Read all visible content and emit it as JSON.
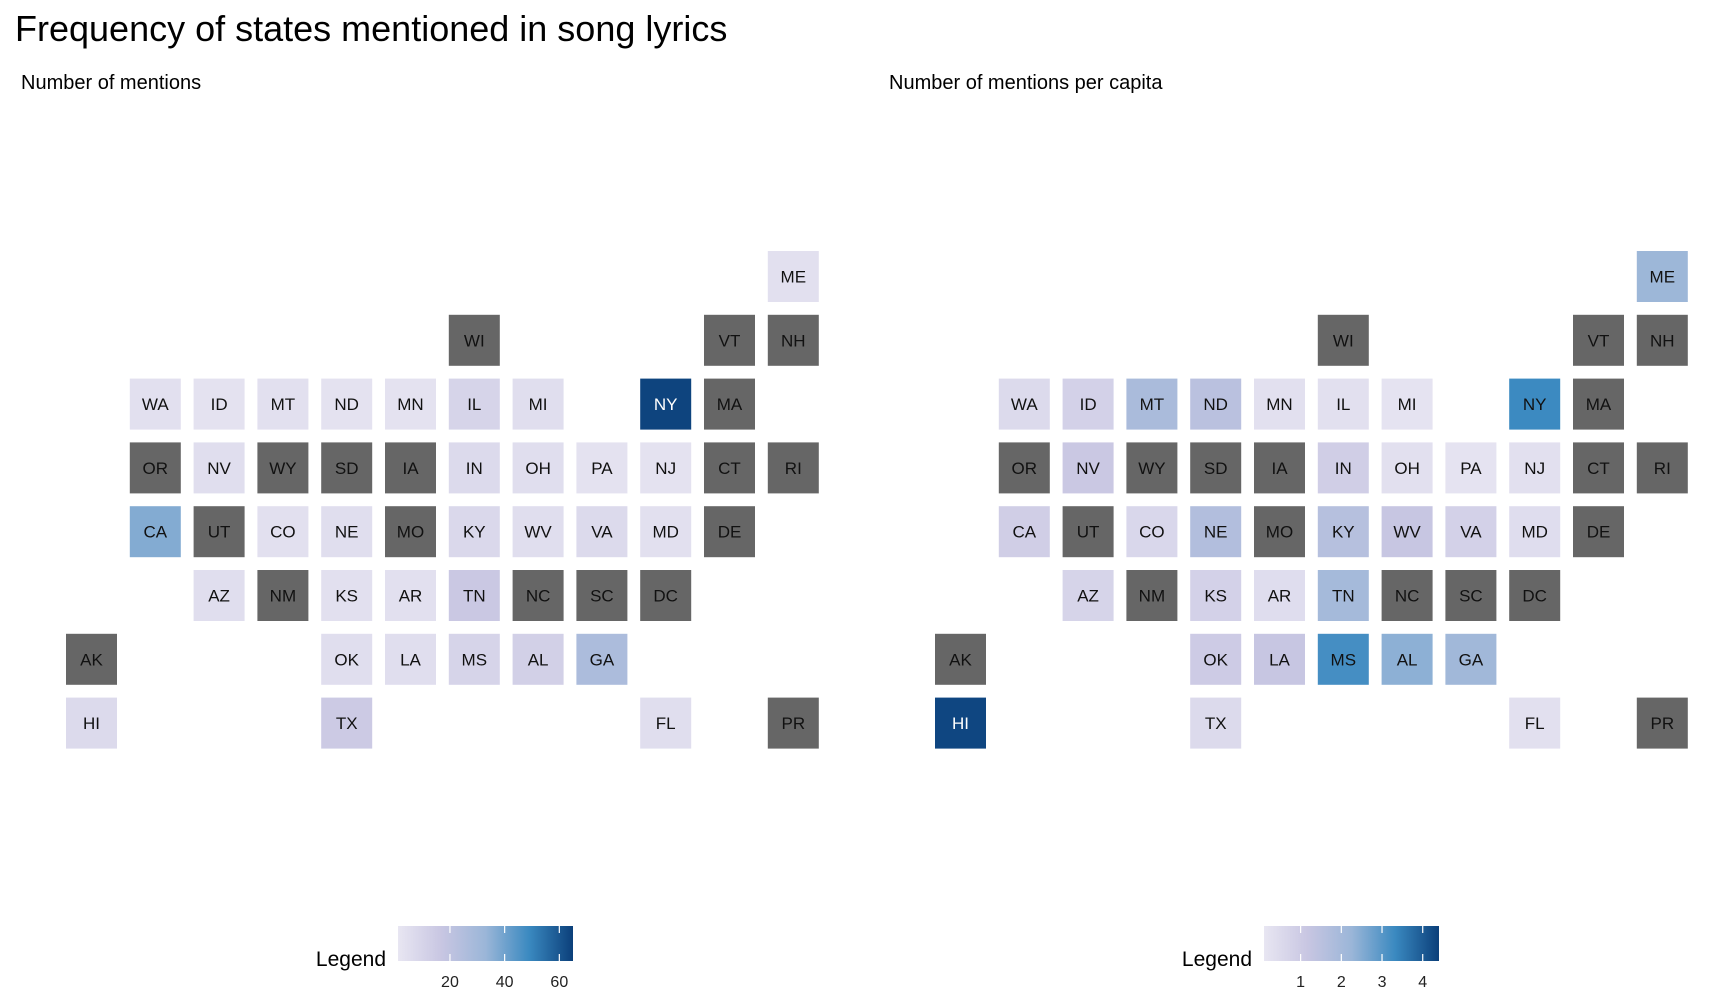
{
  "title": "Frequency of states mentioned in song lyrics",
  "colors": {
    "missing": "#666666",
    "scale": [
      "#e8e6f2",
      "#c8c6e2",
      "#9bb6d8",
      "#3a89c0",
      "#0b3f7a"
    ]
  },
  "chart_data": [
    {
      "type": "heatmap",
      "subtitle": "Number of mentions",
      "legend": {
        "title": "Legend",
        "min": 1,
        "max": 65,
        "ticks": [
          "20",
          "40",
          "60"
        ],
        "tick_values": [
          20,
          40,
          60
        ]
      },
      "tiles": [
        {
          "state": "ME",
          "row": 0,
          "col": 11,
          "value": 4
        },
        {
          "state": "WI",
          "row": 1,
          "col": 6,
          "value": null
        },
        {
          "state": "VT",
          "row": 1,
          "col": 10,
          "value": null
        },
        {
          "state": "NH",
          "row": 1,
          "col": 11,
          "value": null
        },
        {
          "state": "WA",
          "row": 2,
          "col": 1,
          "value": 4
        },
        {
          "state": "ID",
          "row": 2,
          "col": 2,
          "value": 3
        },
        {
          "state": "MT",
          "row": 2,
          "col": 3,
          "value": 4
        },
        {
          "state": "ND",
          "row": 2,
          "col": 4,
          "value": 3
        },
        {
          "state": "MN",
          "row": 2,
          "col": 5,
          "value": 3
        },
        {
          "state": "IL",
          "row": 2,
          "col": 6,
          "value": 10
        },
        {
          "state": "MI",
          "row": 2,
          "col": 7,
          "value": 5
        },
        {
          "state": "NY",
          "row": 2,
          "col": 9,
          "value": 64
        },
        {
          "state": "MA",
          "row": 2,
          "col": 10,
          "value": null
        },
        {
          "state": "OR",
          "row": 3,
          "col": 1,
          "value": null
        },
        {
          "state": "NV",
          "row": 3,
          "col": 2,
          "value": 5
        },
        {
          "state": "WY",
          "row": 3,
          "col": 3,
          "value": null
        },
        {
          "state": "SD",
          "row": 3,
          "col": 4,
          "value": null
        },
        {
          "state": "IA",
          "row": 3,
          "col": 5,
          "value": null
        },
        {
          "state": "IN",
          "row": 3,
          "col": 6,
          "value": 7
        },
        {
          "state": "OH",
          "row": 3,
          "col": 7,
          "value": 5
        },
        {
          "state": "PA",
          "row": 3,
          "col": 8,
          "value": 3
        },
        {
          "state": "NJ",
          "row": 3,
          "col": 9,
          "value": 3
        },
        {
          "state": "CT",
          "row": 3,
          "col": 10,
          "value": null
        },
        {
          "state": "RI",
          "row": 3,
          "col": 11,
          "value": null
        },
        {
          "state": "CA",
          "row": 4,
          "col": 1,
          "value": 37
        },
        {
          "state": "UT",
          "row": 4,
          "col": 2,
          "value": null
        },
        {
          "state": "CO",
          "row": 4,
          "col": 3,
          "value": 4
        },
        {
          "state": "NE",
          "row": 4,
          "col": 4,
          "value": 5
        },
        {
          "state": "MO",
          "row": 4,
          "col": 5,
          "value": null
        },
        {
          "state": "KY",
          "row": 4,
          "col": 6,
          "value": 8
        },
        {
          "state": "WV",
          "row": 4,
          "col": 7,
          "value": 5
        },
        {
          "state": "VA",
          "row": 4,
          "col": 8,
          "value": 7
        },
        {
          "state": "MD",
          "row": 4,
          "col": 9,
          "value": 4
        },
        {
          "state": "DE",
          "row": 4,
          "col": 10,
          "value": null
        },
        {
          "state": "AZ",
          "row": 5,
          "col": 2,
          "value": 5
        },
        {
          "state": "NM",
          "row": 5,
          "col": 3,
          "value": null
        },
        {
          "state": "KS",
          "row": 5,
          "col": 4,
          "value": 4
        },
        {
          "state": "AR",
          "row": 5,
          "col": 5,
          "value": 4
        },
        {
          "state": "TN",
          "row": 5,
          "col": 6,
          "value": 16
        },
        {
          "state": "NC",
          "row": 5,
          "col": 7,
          "value": null
        },
        {
          "state": "SC",
          "row": 5,
          "col": 8,
          "value": null
        },
        {
          "state": "DC",
          "row": 5,
          "col": 9,
          "value": null
        },
        {
          "state": "AK",
          "row": 6,
          "col": 0,
          "value": null
        },
        {
          "state": "OK",
          "row": 6,
          "col": 4,
          "value": 5
        },
        {
          "state": "LA",
          "row": 6,
          "col": 5,
          "value": 5
        },
        {
          "state": "MS",
          "row": 6,
          "col": 6,
          "value": 10
        },
        {
          "state": "AL",
          "row": 6,
          "col": 7,
          "value": 12
        },
        {
          "state": "GA",
          "row": 6,
          "col": 8,
          "value": 27
        },
        {
          "state": "HI",
          "row": 7,
          "col": 0,
          "value": 7
        },
        {
          "state": "TX",
          "row": 7,
          "col": 4,
          "value": 15
        },
        {
          "state": "FL",
          "row": 7,
          "col": 9,
          "value": 5
        },
        {
          "state": "PR",
          "row": 7,
          "col": 11,
          "value": null
        }
      ]
    },
    {
      "type": "heatmap",
      "subtitle": "Number of mentions per capita",
      "legend": {
        "title": "Legend",
        "min": 0.1,
        "max": 4.4,
        "ticks": [
          "1",
          "2",
          "3",
          "4"
        ],
        "tick_values": [
          1,
          2,
          3,
          4
        ]
      },
      "tiles": [
        {
          "state": "ME",
          "row": 0,
          "col": 11,
          "value": 2.2
        },
        {
          "state": "WI",
          "row": 1,
          "col": 6,
          "value": null
        },
        {
          "state": "VT",
          "row": 1,
          "col": 10,
          "value": null
        },
        {
          "state": "NH",
          "row": 1,
          "col": 11,
          "value": null
        },
        {
          "state": "WA",
          "row": 2,
          "col": 1,
          "value": 0.5
        },
        {
          "state": "ID",
          "row": 2,
          "col": 2,
          "value": 0.8
        },
        {
          "state": "MT",
          "row": 2,
          "col": 3,
          "value": 1.9
        },
        {
          "state": "ND",
          "row": 2,
          "col": 4,
          "value": 1.5
        },
        {
          "state": "MN",
          "row": 2,
          "col": 5,
          "value": 0.3
        },
        {
          "state": "IL",
          "row": 2,
          "col": 6,
          "value": 0.3
        },
        {
          "state": "MI",
          "row": 2,
          "col": 7,
          "value": 0.2
        },
        {
          "state": "NY",
          "row": 2,
          "col": 9,
          "value": 3.3
        },
        {
          "state": "MA",
          "row": 2,
          "col": 10,
          "value": null
        },
        {
          "state": "OR",
          "row": 3,
          "col": 1,
          "value": null
        },
        {
          "state": "NV",
          "row": 3,
          "col": 2,
          "value": 1.1
        },
        {
          "state": "WY",
          "row": 3,
          "col": 3,
          "value": null
        },
        {
          "state": "SD",
          "row": 3,
          "col": 4,
          "value": null
        },
        {
          "state": "IA",
          "row": 3,
          "col": 5,
          "value": null
        },
        {
          "state": "IN",
          "row": 3,
          "col": 6,
          "value": 0.9
        },
        {
          "state": "OH",
          "row": 3,
          "col": 7,
          "value": 0.3
        },
        {
          "state": "PA",
          "row": 3,
          "col": 8,
          "value": 0.2
        },
        {
          "state": "NJ",
          "row": 3,
          "col": 9,
          "value": 0.3
        },
        {
          "state": "CT",
          "row": 3,
          "col": 10,
          "value": null
        },
        {
          "state": "RI",
          "row": 3,
          "col": 11,
          "value": null
        },
        {
          "state": "CA",
          "row": 4,
          "col": 1,
          "value": 0.9
        },
        {
          "state": "UT",
          "row": 4,
          "col": 2,
          "value": null
        },
        {
          "state": "CO",
          "row": 4,
          "col": 3,
          "value": 0.6
        },
        {
          "state": "NE",
          "row": 4,
          "col": 4,
          "value": 1.7
        },
        {
          "state": "MO",
          "row": 4,
          "col": 5,
          "value": null
        },
        {
          "state": "KY",
          "row": 4,
          "col": 6,
          "value": 1.6
        },
        {
          "state": "WV",
          "row": 4,
          "col": 7,
          "value": 1.2
        },
        {
          "state": "VA",
          "row": 4,
          "col": 8,
          "value": 0.8
        },
        {
          "state": "MD",
          "row": 4,
          "col": 9,
          "value": 0.4
        },
        {
          "state": "DE",
          "row": 4,
          "col": 10,
          "value": null
        },
        {
          "state": "AZ",
          "row": 5,
          "col": 2,
          "value": 0.7
        },
        {
          "state": "NM",
          "row": 5,
          "col": 3,
          "value": null
        },
        {
          "state": "KS",
          "row": 5,
          "col": 4,
          "value": 0.8
        },
        {
          "state": "AR",
          "row": 5,
          "col": 5,
          "value": 0.4
        },
        {
          "state": "TN",
          "row": 5,
          "col": 6,
          "value": 2.0
        },
        {
          "state": "NC",
          "row": 5,
          "col": 7,
          "value": null
        },
        {
          "state": "SC",
          "row": 5,
          "col": 8,
          "value": null
        },
        {
          "state": "DC",
          "row": 5,
          "col": 9,
          "value": null
        },
        {
          "state": "AK",
          "row": 6,
          "col": 0,
          "value": null
        },
        {
          "state": "OK",
          "row": 6,
          "col": 4,
          "value": 1.0
        },
        {
          "state": "LA",
          "row": 6,
          "col": 5,
          "value": 1.2
        },
        {
          "state": "MS",
          "row": 6,
          "col": 6,
          "value": 3.2
        },
        {
          "state": "AL",
          "row": 6,
          "col": 7,
          "value": 2.4
        },
        {
          "state": "GA",
          "row": 6,
          "col": 8,
          "value": 2.1
        },
        {
          "state": "HI",
          "row": 7,
          "col": 0,
          "value": 4.3
        },
        {
          "state": "TX",
          "row": 7,
          "col": 4,
          "value": 0.5
        },
        {
          "state": "FL",
          "row": 7,
          "col": 9,
          "value": 0.3
        },
        {
          "state": "PR",
          "row": 7,
          "col": 11,
          "value": null
        }
      ]
    }
  ]
}
